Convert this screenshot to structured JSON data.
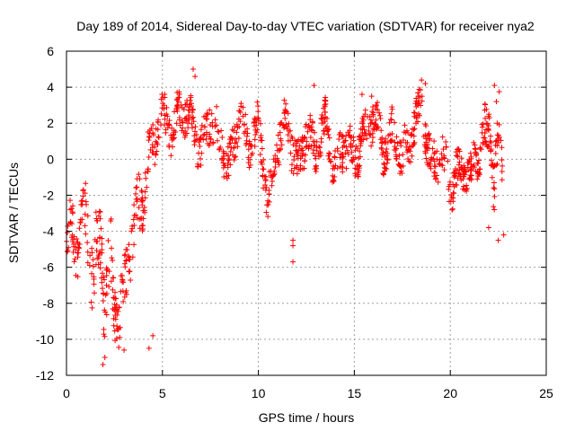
{
  "chart_data": {
    "type": "scatter",
    "title": "Day 189 of 2014, Sidereal Day-to-day VTEC variation (SDTVAR) for receiver nya2",
    "xlabel": "GPS time / hours",
    "ylabel": "SDTVAR / TECUs",
    "xlim": [
      0,
      25
    ],
    "ylim": [
      -12,
      6
    ],
    "x_ticks": [
      0,
      5,
      10,
      15,
      20,
      25
    ],
    "y_ticks": [
      -12,
      -10,
      -8,
      -6,
      -4,
      -2,
      0,
      2,
      4,
      6
    ],
    "x_tick_labels": [
      "0",
      "5",
      "10",
      "15",
      "20",
      "25"
    ],
    "y_tick_labels": [
      "-12",
      "-10",
      "-8",
      "-6",
      "-4",
      "-2",
      "0",
      "2",
      "4",
      "6"
    ],
    "grid": true,
    "marker": "+",
    "color": "#ff0000",
    "series": [
      {
        "name": "SDTVAR",
        "trend": {
          "x": [
            0.0,
            0.3,
            0.6,
            1.0,
            1.4,
            1.8,
            2.0,
            2.3,
            2.7,
            3.0,
            3.3,
            3.7,
            4.0,
            4.3,
            4.6,
            5.0,
            5.5,
            6.0,
            6.5,
            7.0,
            7.5,
            8.0,
            8.5,
            9.0,
            9.5,
            10.0,
            10.5,
            11.0,
            11.5,
            12.0,
            12.5,
            13.0,
            13.5,
            14.0,
            14.5,
            15.0,
            15.5,
            16.0,
            16.5,
            17.0,
            17.5,
            18.0,
            18.5,
            19.0,
            19.5,
            20.0,
            20.5,
            21.0,
            21.5,
            22.0,
            22.3,
            22.6,
            22.8
          ],
          "y": [
            -4.5,
            -3.5,
            -5.0,
            -3.2,
            -6.5,
            -4.0,
            -8.0,
            -6.0,
            -9.0,
            -7.5,
            -4.5,
            -3.0,
            -2.0,
            0.5,
            1.0,
            2.5,
            1.5,
            2.8,
            2.0,
            0.5,
            2.5,
            1.0,
            -0.5,
            2.5,
            0.5,
            2.0,
            -2.5,
            1.0,
            2.0,
            -0.5,
            1.5,
            0.5,
            2.0,
            -0.5,
            1.0,
            0.0,
            1.5,
            2.5,
            0.5,
            1.5,
            0.0,
            1.5,
            3.0,
            -0.5,
            0.5,
            -1.5,
            -0.5,
            -1.0,
            0.5,
            1.5,
            -1.0,
            2.0,
            -3.5
          ],
          "spread": [
            1.5,
            1.5,
            1.5,
            1.5,
            1.8,
            1.8,
            2.0,
            2.0,
            1.5,
            1.5,
            1.5,
            1.5,
            1.2,
            1.2,
            1.2,
            1.0,
            1.0,
            1.0,
            1.0,
            1.0,
            1.0,
            1.0,
            1.0,
            1.0,
            1.0,
            1.0,
            1.0,
            1.0,
            1.0,
            1.0,
            1.0,
            1.0,
            1.0,
            1.0,
            1.0,
            1.0,
            1.0,
            1.0,
            1.0,
            1.0,
            1.0,
            1.0,
            1.0,
            1.0,
            1.0,
            1.0,
            1.0,
            1.0,
            1.0,
            1.5,
            1.5,
            1.5,
            1.0
          ]
        },
        "highlights": {
          "x": [
            6.6,
            6.7,
            4.3,
            4.5,
            1.9,
            2.0,
            3.0,
            11.8,
            11.8,
            11.8,
            12.9,
            15.4,
            15.9,
            18.5,
            18.7,
            22.3,
            22.5,
            22.0,
            22.4
          ],
          "y": [
            5.0,
            4.6,
            -10.5,
            -9.8,
            -11.4,
            -11.0,
            -10.6,
            -4.5,
            -4.8,
            -5.7,
            4.1,
            3.6,
            3.5,
            4.4,
            4.2,
            4.1,
            -4.5,
            -3.8,
            3.2
          ]
        }
      }
    ]
  }
}
